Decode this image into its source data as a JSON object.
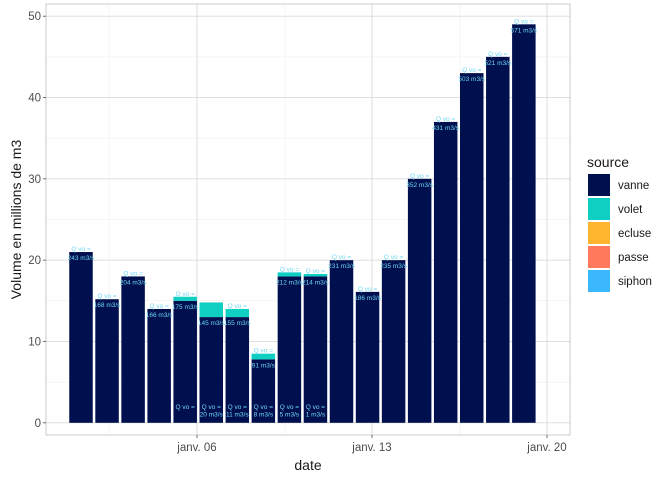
{
  "chart_data": {
    "type": "bar",
    "stacked": true,
    "xlabel": "date",
    "ylabel": "Volume en millions de m3",
    "x_ticks": [
      "janv. 06",
      "janv. 13",
      "janv. 20"
    ],
    "y_ticks": [
      "0",
      "10",
      "20",
      "30",
      "40",
      "50"
    ],
    "ylim": [
      -1.5,
      51.5
    ],
    "grid": true,
    "legend": {
      "title": "source",
      "position": "right",
      "entries": [
        {
          "name": "vanne",
          "color": "#00104f"
        },
        {
          "name": "volet",
          "color": "#0fcfc3"
        },
        {
          "name": "ecluse",
          "color": "#ffb52e"
        },
        {
          "name": "passe",
          "color": "#ff7a5c"
        },
        {
          "name": "siphon",
          "color": "#3ab7ff"
        }
      ]
    },
    "series_colors": {
      "vanne": "#00104f",
      "volet": "#0fcfc3"
    },
    "bars": [
      {
        "vanne": 21.0,
        "volet": 0.0,
        "top_label": "Q vo =",
        "vanne_label": "243 m3/s",
        "bottom_label": ""
      },
      {
        "vanne": 15.2,
        "volet": 0.0,
        "top_label": "Q vo =",
        "vanne_label": "168 m3/s",
        "bottom_label": ""
      },
      {
        "vanne": 18.0,
        "volet": 0.0,
        "top_label": "Q vo =",
        "vanne_label": "204 m3/s",
        "bottom_label": ""
      },
      {
        "vanne": 14.0,
        "volet": 0.0,
        "top_label": "Q vo =",
        "vanne_label": "166 m3/s",
        "bottom_label": ""
      },
      {
        "vanne": 15.0,
        "volet": 0.5,
        "top_label": "Q vo =",
        "vanne_label": "175 m3/s",
        "bottom_label": "Q vo ="
      },
      {
        "vanne": 13.0,
        "volet": 1.8,
        "top_label": "",
        "vanne_label": "145 m3/s",
        "bottom_label": "Q vo =\n20 m3/s"
      },
      {
        "vanne": 13.0,
        "volet": 1.0,
        "top_label": "Q vo =",
        "vanne_label": "155 m3/s",
        "bottom_label": "Q vo =\n11 m3/s"
      },
      {
        "vanne": 7.8,
        "volet": 0.7,
        "top_label": "Q vo =",
        "vanne_label": "91 m3/s",
        "bottom_label": "Q vo =\n8 m3/s"
      },
      {
        "vanne": 18.0,
        "volet": 0.5,
        "top_label": "Q vo =",
        "vanne_label": "212 m3/s",
        "bottom_label": "Q vo =\n5 m3/s"
      },
      {
        "vanne": 18.0,
        "volet": 0.3,
        "top_label": "Q vo =",
        "vanne_label": "214 m3/s",
        "bottom_label": "Q vo =\n1 m3/s"
      },
      {
        "vanne": 20.0,
        "volet": 0.0,
        "top_label": "Q vo =",
        "vanne_label": "231 m3/s",
        "bottom_label": ""
      },
      {
        "vanne": 16.1,
        "volet": 0.0,
        "top_label": "Q vo =",
        "vanne_label": "186 m3/s",
        "bottom_label": ""
      },
      {
        "vanne": 20.0,
        "volet": 0.0,
        "top_label": "Q vo =",
        "vanne_label": "235 m3/s",
        "bottom_label": ""
      },
      {
        "vanne": 30.0,
        "volet": 0.0,
        "top_label": "Q vo =",
        "vanne_label": "352 m3/s",
        "bottom_label": ""
      },
      {
        "vanne": 37.0,
        "volet": 0.0,
        "top_label": "Q vo =",
        "vanne_label": "431 m3/s",
        "bottom_label": ""
      },
      {
        "vanne": 43.0,
        "volet": 0.0,
        "top_label": "Q vo =",
        "vanne_label": "503 m3/s",
        "bottom_label": ""
      },
      {
        "vanne": 45.0,
        "volet": 0.0,
        "top_label": "Q vo =",
        "vanne_label": "521 m3/s",
        "bottom_label": ""
      },
      {
        "vanne": 49.0,
        "volet": 0.0,
        "top_label": "Q vo =",
        "vanne_label": "571 m3/s",
        "bottom_label": ""
      }
    ]
  }
}
